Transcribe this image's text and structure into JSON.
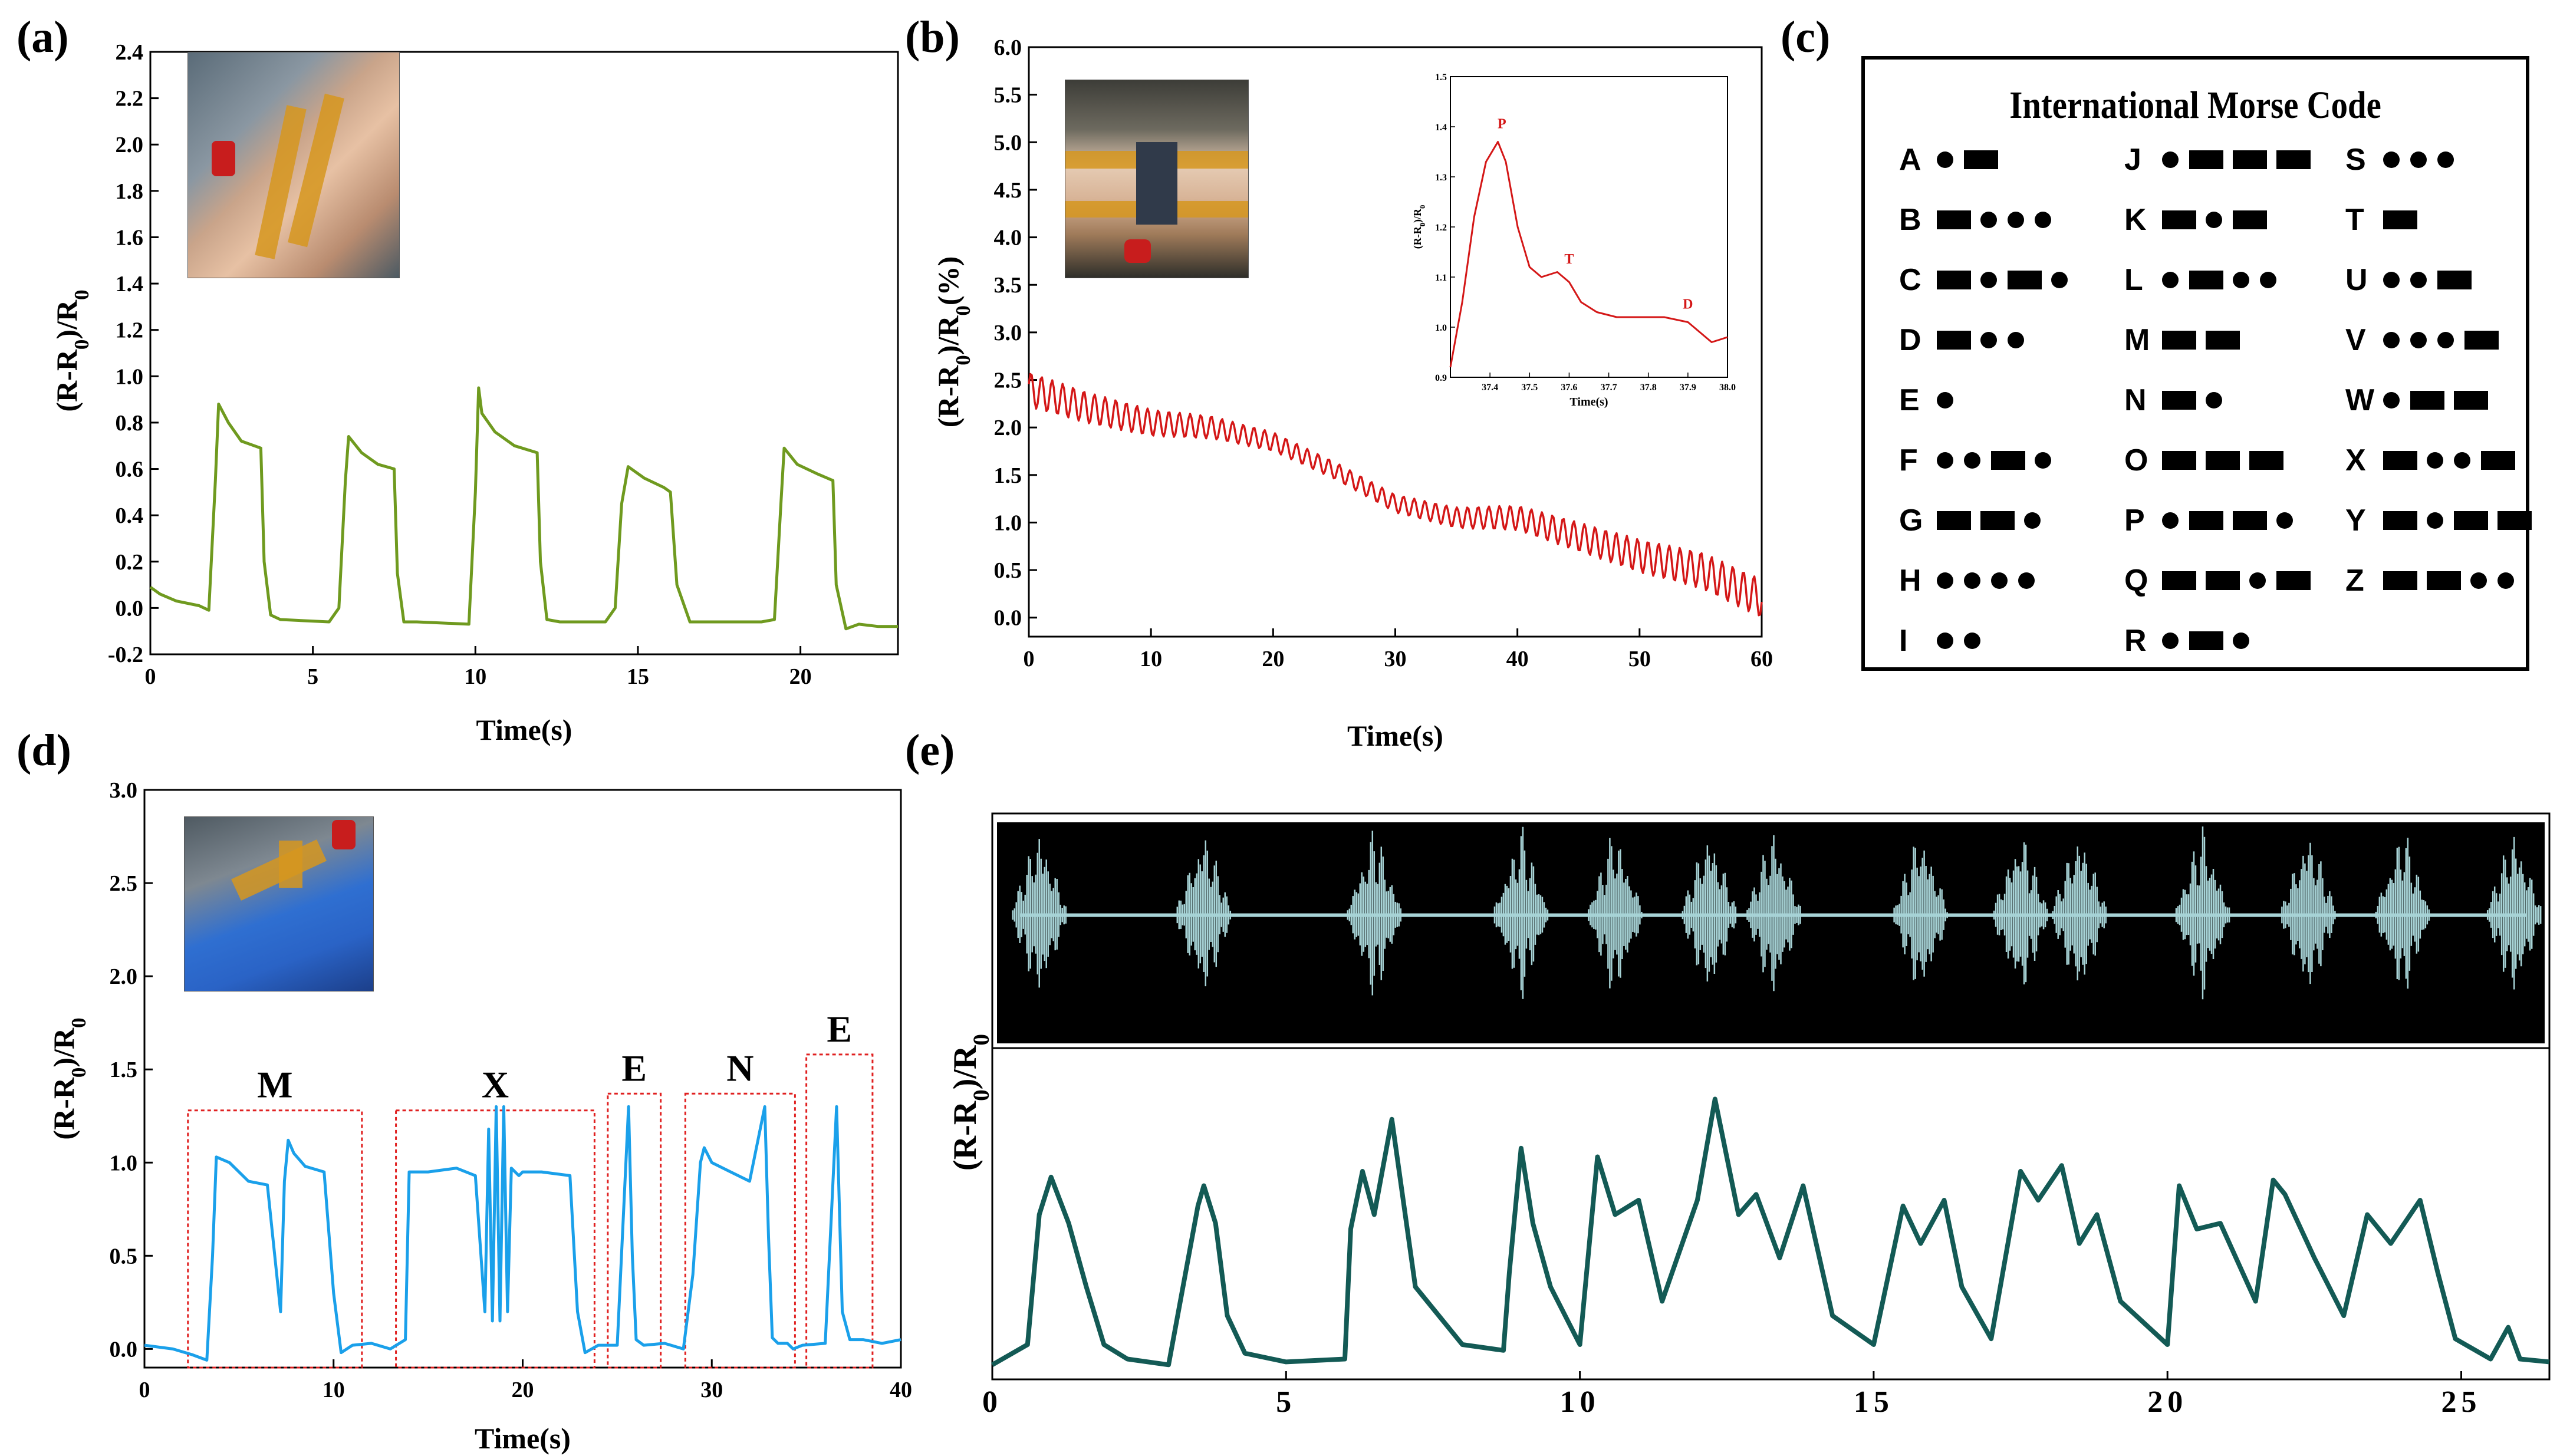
{
  "panel_labels": {
    "a": "(a)",
    "b": "(b)",
    "c": "(c)",
    "d": "(d)",
    "e": "(e)"
  },
  "colors": {
    "green": "#6f9a1f",
    "red": "#d41717",
    "blue": "#1aa0ea",
    "teal": "#135a55",
    "audio": "#a7d3d6"
  },
  "chart_data": [
    {
      "id": "a",
      "type": "line",
      "title": "",
      "xlabel": "Time(s)",
      "ylabel": "(R-R0)/R0",
      "xlim": [
        0,
        23
      ],
      "ylim": [
        -0.2,
        2.4
      ],
      "xticks": [
        0,
        5,
        10,
        15,
        20
      ],
      "yticks": [
        -0.2,
        0.0,
        0.2,
        0.4,
        0.6,
        0.8,
        1.0,
        1.2,
        1.4,
        1.6,
        1.8,
        2.0,
        2.2,
        2.4
      ],
      "x": [
        0,
        0.3,
        0.8,
        1.5,
        1.8,
        2.0,
        2.1,
        2.4,
        2.8,
        3.4,
        3.5,
        3.7,
        4.0,
        5.5,
        5.8,
        6.0,
        6.1,
        6.5,
        7.0,
        7.5,
        7.6,
        7.8,
        8.2,
        9.8,
        10.0,
        10.1,
        10.2,
        10.6,
        11.2,
        11.9,
        12.0,
        12.2,
        12.6,
        14.0,
        14.3,
        14.5,
        14.7,
        15.2,
        15.8,
        16.0,
        16.2,
        16.6,
        18.8,
        19.2,
        19.4,
        19.5,
        19.9,
        20.5,
        21.0,
        21.1,
        21.4,
        21.8,
        22.4,
        23.0
      ],
      "y": [
        0.09,
        0.06,
        0.03,
        0.01,
        -0.01,
        0.55,
        0.88,
        0.8,
        0.72,
        0.69,
        0.2,
        -0.03,
        -0.05,
        -0.06,
        0.0,
        0.55,
        0.74,
        0.67,
        0.62,
        0.6,
        0.15,
        -0.06,
        -0.06,
        -0.07,
        0.5,
        0.95,
        0.84,
        0.76,
        0.7,
        0.67,
        0.2,
        -0.05,
        -0.06,
        -0.06,
        0.0,
        0.45,
        0.61,
        0.56,
        0.52,
        0.5,
        0.1,
        -0.06,
        -0.06,
        -0.05,
        0.45,
        0.69,
        0.62,
        0.58,
        0.55,
        0.1,
        -0.09,
        -0.07,
        -0.08,
        -0.08
      ]
    },
    {
      "id": "b",
      "type": "line",
      "title": "",
      "xlabel": "Time(s)",
      "ylabel": "(R-R0)/R0(%)",
      "xlim": [
        0,
        60
      ],
      "ylim": [
        -0.2,
        6.0
      ],
      "xticks": [
        0,
        10,
        20,
        30,
        40,
        50,
        60
      ],
      "yticks": [
        0.0,
        0.5,
        1.0,
        1.5,
        2.0,
        2.5,
        3.0,
        3.5,
        4.0,
        4.5,
        5.0,
        5.5,
        6.0
      ],
      "trend_x": [
        0,
        5,
        10,
        15,
        20,
        25,
        30,
        35,
        40,
        45,
        50,
        55,
        60
      ],
      "trend_y": [
        2.4,
        2.2,
        2.05,
        2.0,
        1.85,
        1.55,
        1.2,
        1.05,
        1.05,
        0.85,
        0.65,
        0.5,
        0.2
      ],
      "oscillation_amplitude": 0.15,
      "inset": {
        "xlabel": "Time(s)",
        "ylabel": "(R-R0)/R0",
        "xlim": [
          37.3,
          38.0
        ],
        "ylim": [
          0.9,
          1.5
        ],
        "xticks": [
          37.4,
          37.5,
          37.6,
          37.7,
          37.8,
          37.9,
          38.0
        ],
        "yticks": [
          0.9,
          1.0,
          1.1,
          1.2,
          1.3,
          1.4,
          1.5
        ],
        "x": [
          37.3,
          37.33,
          37.36,
          37.39,
          37.42,
          37.44,
          37.47,
          37.5,
          37.53,
          37.57,
          37.6,
          37.63,
          37.67,
          37.72,
          37.78,
          37.84,
          37.9,
          37.93,
          37.96,
          38.0
        ],
        "y": [
          0.92,
          1.05,
          1.22,
          1.33,
          1.37,
          1.33,
          1.2,
          1.12,
          1.1,
          1.11,
          1.09,
          1.05,
          1.03,
          1.02,
          1.02,
          1.02,
          1.01,
          0.99,
          0.97,
          0.98
        ],
        "annotations": [
          {
            "text": "P",
            "x": 37.43,
            "y": 1.39
          },
          {
            "text": "T",
            "x": 37.6,
            "y": 1.12
          },
          {
            "text": "D",
            "x": 37.9,
            "y": 1.03
          }
        ]
      }
    },
    {
      "id": "d",
      "type": "line",
      "title": "",
      "xlabel": "Time(s)",
      "ylabel": "(R-R0)/R0",
      "xlim": [
        0,
        40
      ],
      "ylim": [
        -0.1,
        3.0
      ],
      "xticks": [
        0,
        10,
        20,
        30,
        40
      ],
      "yticks": [
        0.0,
        0.5,
        1.0,
        1.5,
        2.0,
        2.5,
        3.0
      ],
      "x": [
        0,
        1.5,
        2.5,
        3.3,
        3.6,
        3.8,
        4.5,
        5.5,
        6.5,
        7.2,
        7.4,
        7.6,
        7.9,
        8.5,
        9.5,
        10.0,
        10.4,
        11.0,
        12.0,
        13.0,
        13.8,
        14.0,
        15.0,
        16.5,
        17.5,
        18.0,
        18.2,
        18.4,
        18.6,
        18.8,
        19.0,
        19.2,
        19.4,
        19.6,
        19.8,
        20.0,
        21.0,
        22.5,
        22.9,
        23.3,
        24.0,
        25.0,
        25.6,
        25.8,
        26.0,
        26.4,
        27.5,
        28.5,
        29.0,
        29.4,
        29.6,
        30.0,
        31.0,
        32.0,
        32.8,
        33.0,
        33.2,
        33.5,
        34.0,
        34.3,
        34.8,
        36.0,
        36.6,
        36.9,
        37.3,
        38.0,
        39.0,
        40.0
      ],
      "y": [
        0.02,
        0.0,
        -0.03,
        -0.06,
        0.5,
        1.03,
        1.0,
        0.9,
        0.88,
        0.2,
        0.9,
        1.12,
        1.05,
        0.98,
        0.95,
        0.3,
        -0.02,
        0.02,
        0.03,
        0.0,
        0.05,
        0.95,
        0.95,
        0.97,
        0.93,
        0.2,
        1.18,
        0.15,
        1.3,
        0.15,
        1.3,
        0.2,
        0.97,
        0.95,
        0.93,
        0.95,
        0.95,
        0.93,
        0.2,
        -0.02,
        0.02,
        0.02,
        1.3,
        0.5,
        0.05,
        0.02,
        0.03,
        0.0,
        0.4,
        1.0,
        1.08,
        1.0,
        0.95,
        0.9,
        1.3,
        0.6,
        0.06,
        0.03,
        0.03,
        0.0,
        0.02,
        0.03,
        1.3,
        0.2,
        0.05,
        0.05,
        0.03,
        0.05
      ],
      "boxes": [
        {
          "label": "M",
          "x0": 2.3,
          "x1": 11.5,
          "y0": -0.1,
          "y1": 1.28
        },
        {
          "label": "X",
          "x0": 13.3,
          "x1": 23.8,
          "y0": -0.1,
          "y1": 1.28
        },
        {
          "label": "E",
          "x0": 24.5,
          "x1": 27.3,
          "y0": -0.1,
          "y1": 1.37
        },
        {
          "label": "N",
          "x0": 28.6,
          "x1": 34.4,
          "y0": -0.1,
          "y1": 1.37
        },
        {
          "label": "E",
          "x0": 35.0,
          "x1": 38.5,
          "y0": -0.1,
          "y1": 1.58
        }
      ]
    },
    {
      "id": "e",
      "type": "line",
      "title": "",
      "xlabel": "",
      "ylabel": "(R-R0)/R0",
      "xlim": [
        0,
        26.5
      ],
      "ylim": [
        0,
        1
      ],
      "xticks": [
        0,
        5,
        10,
        15,
        20,
        25
      ],
      "x": [
        0,
        0.6,
        0.8,
        1.0,
        1.3,
        1.6,
        1.9,
        2.3,
        3.0,
        3.5,
        3.6,
        3.8,
        4.0,
        4.3,
        5.0,
        6.0,
        6.1,
        6.3,
        6.5,
        6.8,
        7.2,
        8.0,
        8.7,
        8.8,
        9.0,
        9.2,
        9.5,
        10.0,
        10.3,
        10.6,
        11.0,
        11.4,
        12.0,
        12.3,
        12.7,
        13.0,
        13.4,
        13.8,
        14.3,
        15.0,
        15.5,
        15.8,
        16.2,
        16.5,
        17.0,
        17.5,
        17.8,
        18.2,
        18.5,
        18.8,
        19.2,
        20.0,
        20.2,
        20.5,
        20.9,
        21.5,
        21.8,
        22.0,
        22.5,
        23.0,
        23.4,
        23.8,
        24.3,
        24.6,
        24.9,
        25.5,
        25.8,
        26.0,
        26.5
      ],
      "y": [
        0.03,
        0.1,
        0.55,
        0.68,
        0.52,
        0.3,
        0.1,
        0.05,
        0.03,
        0.58,
        0.65,
        0.52,
        0.2,
        0.07,
        0.04,
        0.05,
        0.5,
        0.7,
        0.55,
        0.88,
        0.3,
        0.1,
        0.08,
        0.35,
        0.78,
        0.52,
        0.3,
        0.1,
        0.75,
        0.55,
        0.6,
        0.25,
        0.6,
        0.95,
        0.55,
        0.62,
        0.4,
        0.65,
        0.2,
        0.1,
        0.58,
        0.45,
        0.6,
        0.3,
        0.12,
        0.7,
        0.6,
        0.72,
        0.45,
        0.55,
        0.25,
        0.1,
        0.65,
        0.5,
        0.52,
        0.25,
        0.67,
        0.62,
        0.4,
        0.2,
        0.55,
        0.45,
        0.6,
        0.35,
        0.12,
        0.05,
        0.16,
        0.05,
        0.04
      ],
      "audio_bursts": [
        0.8,
        3.6,
        6.5,
        9.0,
        10.6,
        12.2,
        13.3,
        15.8,
        17.5,
        18.5,
        20.6,
        22.4,
        24.0,
        25.9
      ]
    }
  ],
  "morse": {
    "title": "International Morse Code",
    "columns": [
      [
        {
          "letter": "A",
          "code": ".-"
        },
        {
          "letter": "B",
          "code": "-..."
        },
        {
          "letter": "C",
          "code": "-.-."
        },
        {
          "letter": "D",
          "code": "-.."
        },
        {
          "letter": "E",
          "code": "."
        },
        {
          "letter": "F",
          "code": "..-."
        },
        {
          "letter": "G",
          "code": "--."
        },
        {
          "letter": "H",
          "code": "...."
        },
        {
          "letter": "I",
          "code": ".."
        }
      ],
      [
        {
          "letter": "J",
          "code": ".---"
        },
        {
          "letter": "K",
          "code": "-.-"
        },
        {
          "letter": "L",
          "code": ".-.."
        },
        {
          "letter": "M",
          "code": "--"
        },
        {
          "letter": "N",
          "code": "-."
        },
        {
          "letter": "O",
          "code": "---"
        },
        {
          "letter": "P",
          "code": ".--."
        },
        {
          "letter": "Q",
          "code": "--.-"
        },
        {
          "letter": "R",
          "code": ".-."
        }
      ],
      [
        {
          "letter": "S",
          "code": "..."
        },
        {
          "letter": "T",
          "code": "-"
        },
        {
          "letter": "U",
          "code": "..-"
        },
        {
          "letter": "V",
          "code": "...-"
        },
        {
          "letter": "W",
          "code": ".--"
        },
        {
          "letter": "X",
          "code": "-..-"
        },
        {
          "letter": "Y",
          "code": "-.--"
        },
        {
          "letter": "Z",
          "code": "--.."
        }
      ]
    ]
  }
}
